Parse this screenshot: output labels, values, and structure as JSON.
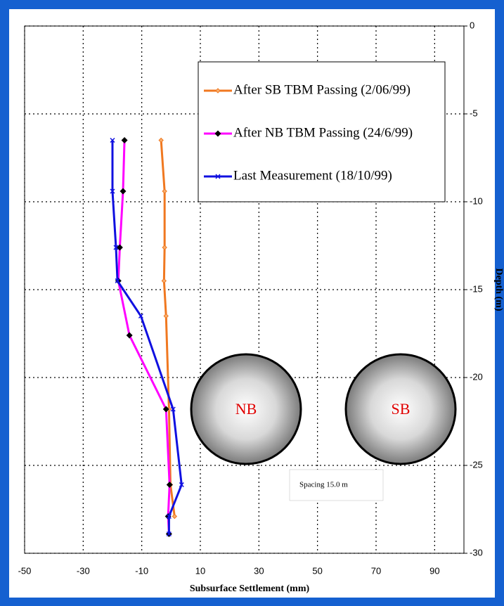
{
  "chart_data": {
    "type": "line",
    "x_label": "Subsurface Settlement (mm)",
    "y_label": "Depth (m)",
    "xlim": [
      -50,
      100
    ],
    "ylim": [
      -30,
      0
    ],
    "xticks": [
      -50,
      -30,
      -10,
      10,
      30,
      50,
      70,
      90
    ],
    "yticks": [
      0,
      -5,
      -10,
      -15,
      -20,
      -25,
      -30
    ],
    "grid": true,
    "legend": "top-right",
    "annotations": [
      "NB",
      "SB",
      "Spacing 15.0 m"
    ],
    "series": [
      {
        "name": "After SB TBM Passing (2/06/99)",
        "color": "#f07820",
        "x": [
          -3.4,
          -2.2,
          -2.2,
          -2.4,
          -1.7,
          -0.7,
          -0.2,
          1.2
        ],
        "values": [
          -6.5,
          -9.4,
          -12.6,
          -14.5,
          -16.5,
          -21.8,
          -26.1,
          -27.9
        ]
      },
      {
        "name": "After NB TBM Passing (24/6/99)",
        "color": "#ff00ff",
        "x": [
          -15.9,
          -16.4,
          -17.5,
          -18,
          -14.2,
          -1.7,
          -0.5,
          -1,
          -0.7
        ],
        "values": [
          -6.5,
          -9.4,
          -12.6,
          -14.5,
          -17.6,
          -21.8,
          -26.1,
          -27.9,
          -28.9
        ]
      },
      {
        "name": "Last Measurement (18/10/99)",
        "color": "#1010e0",
        "x": [
          -20,
          -20,
          -18.8,
          -18.3,
          -10.3,
          0.7,
          3.6,
          -0.7,
          -0.7
        ],
        "values": [
          -6.5,
          -9.4,
          -12.6,
          -14.5,
          -16.5,
          -21.8,
          -26.1,
          -27.9,
          -28.9
        ]
      }
    ]
  }
}
